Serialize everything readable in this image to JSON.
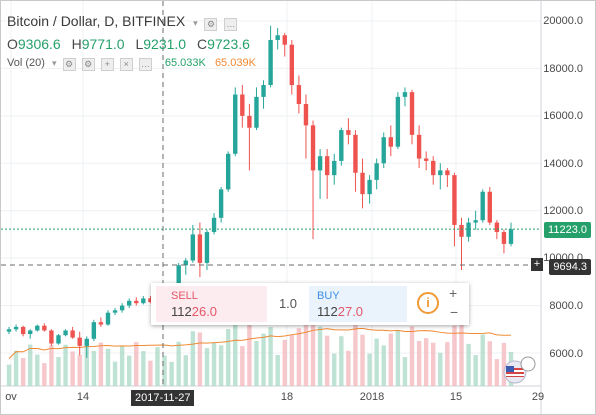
{
  "legend": {
    "title": "Bitcoin / Dollar, D, BITFINEX",
    "ohlc": [
      {
        "k": "O",
        "v": "9306.6"
      },
      {
        "k": "H",
        "v": "9771.0"
      },
      {
        "k": "L",
        "v": "9231.0"
      },
      {
        "k": "C",
        "v": "9723.6"
      }
    ],
    "vol_label": "Vol (20)",
    "vol_value": "65.033K",
    "vol_ma": "65.039K"
  },
  "y_axis": [
    "20000.0",
    "18000.0",
    "16000.0",
    "14000.0",
    "12000.0",
    "10000.0",
    "8000.0",
    "6000.0"
  ],
  "x_axis": [
    "ov",
    "14",
    "18",
    "2018",
    "15",
    "29"
  ],
  "last_price_tag": "11223.0",
  "crosshair_price": "9694.3",
  "crosshair_date": "2017-11-27",
  "trade_panel": {
    "sell_label": "SELL",
    "sell_price_prefix": "112",
    "sell_price_suffix": "26.0",
    "spread": "1.0",
    "buy_label": "BUY",
    "buy_price_prefix": "112",
    "buy_price_suffix": "27.0"
  },
  "colors": {
    "up": "#26a69a",
    "down": "#ef5350",
    "last_line": "#26a06a",
    "vol_ma": "#f08a34"
  },
  "chart_data": {
    "type": "candlestick",
    "title": "Bitcoin / Dollar, D, BITFINEX",
    "ylim": [
      4800,
      20500
    ],
    "y_ticks": [
      6000,
      8000,
      10000,
      12000,
      14000,
      16000,
      18000,
      20000
    ],
    "candles": [
      [
        6900,
        7100,
        6800,
        7000
      ],
      [
        7000,
        7200,
        6900,
        7100
      ],
      [
        7100,
        7150,
        6700,
        6800
      ],
      [
        6800,
        7000,
        6600,
        6950
      ],
      [
        6950,
        7200,
        6900,
        7150
      ],
      [
        7150,
        7250,
        6900,
        6950
      ],
      [
        6950,
        7000,
        6300,
        6400
      ],
      [
        6400,
        6800,
        6350,
        6750
      ],
      [
        6750,
        7000,
        6700,
        6950
      ],
      [
        6950,
        7100,
        6600,
        6650
      ],
      [
        6650,
        6900,
        5900,
        6300
      ],
      [
        6300,
        6700,
        5800,
        6600
      ],
      [
        6600,
        7400,
        6500,
        7300
      ],
      [
        7300,
        7500,
        7100,
        7200
      ],
      [
        7200,
        7800,
        7150,
        7700
      ],
      [
        7700,
        7900,
        7600,
        7800
      ],
      [
        7800,
        8100,
        7700,
        8000
      ],
      [
        8000,
        8300,
        7900,
        8200
      ],
      [
        8200,
        8350,
        8000,
        8100
      ],
      [
        8100,
        8400,
        8050,
        8300
      ],
      [
        8300,
        8400,
        8100,
        8150
      ],
      [
        8150,
        8300,
        8050,
        8250
      ],
      [
        8250,
        8500,
        8200,
        8400
      ],
      [
        8400,
        8850,
        8300,
        8750
      ],
      [
        8750,
        9800,
        8700,
        9700
      ],
      [
        9700,
        10000,
        9300,
        9900
      ],
      [
        9900,
        11400,
        9800,
        11000
      ],
      [
        11000,
        11500,
        9200,
        9800
      ],
      [
        9800,
        11200,
        9500,
        11100
      ],
      [
        11100,
        11900,
        11000,
        11700
      ],
      [
        11700,
        13000,
        11500,
        12900
      ],
      [
        12900,
        14500,
        12800,
        14400
      ],
      [
        14400,
        17200,
        14300,
        16900
      ],
      [
        16900,
        17300,
        15500,
        16000
      ],
      [
        16000,
        16500,
        13700,
        15500
      ],
      [
        15500,
        17200,
        15400,
        16800
      ],
      [
        16800,
        17500,
        16300,
        17300
      ],
      [
        17300,
        19800,
        17200,
        19200
      ],
      [
        19200,
        19700,
        18800,
        19400
      ],
      [
        19400,
        19500,
        18500,
        19000
      ],
      [
        19000,
        19200,
        16900,
        17300
      ],
      [
        17300,
        17700,
        16100,
        16500
      ],
      [
        16500,
        16900,
        14200,
        15600
      ],
      [
        15600,
        15800,
        10800,
        13700
      ],
      [
        13700,
        14600,
        12500,
        14300
      ],
      [
        14300,
        14600,
        12500,
        13500
      ],
      [
        13500,
        14400,
        13100,
        14100
      ],
      [
        14100,
        15500,
        13900,
        15400
      ],
      [
        15400,
        15900,
        14800,
        15200
      ],
      [
        15200,
        15400,
        12800,
        13600
      ],
      [
        13600,
        14200,
        12100,
        12700
      ],
      [
        12700,
        13500,
        12300,
        13300
      ],
      [
        13300,
        14200,
        12900,
        14000
      ],
      [
        14000,
        15300,
        13800,
        15100
      ],
      [
        15100,
        15600,
        14300,
        14700
      ],
      [
        14700,
        17000,
        14600,
        16800
      ],
      [
        16800,
        17200,
        16400,
        17000
      ],
      [
        17000,
        17100,
        14800,
        15200
      ],
      [
        15200,
        15600,
        13800,
        14200
      ],
      [
        14200,
        14500,
        13700,
        14100
      ],
      [
        14100,
        14300,
        13100,
        13500
      ],
      [
        13500,
        14000,
        12900,
        13700
      ],
      [
        13700,
        13800,
        13000,
        13500
      ],
      [
        13500,
        13600,
        10500,
        11400
      ],
      [
        11400,
        11700,
        9500,
        10900
      ],
      [
        10900,
        11700,
        10700,
        11500
      ],
      [
        11500,
        12000,
        11200,
        11600
      ],
      [
        11600,
        12900,
        11500,
        12800
      ],
      [
        12800,
        13000,
        11400,
        11500
      ],
      [
        11500,
        11600,
        10800,
        11100
      ],
      [
        11100,
        11200,
        10200,
        10600
      ],
      [
        10600,
        11500,
        10500,
        11223
      ]
    ],
    "volume_ma_label": "Vol (20)"
  }
}
